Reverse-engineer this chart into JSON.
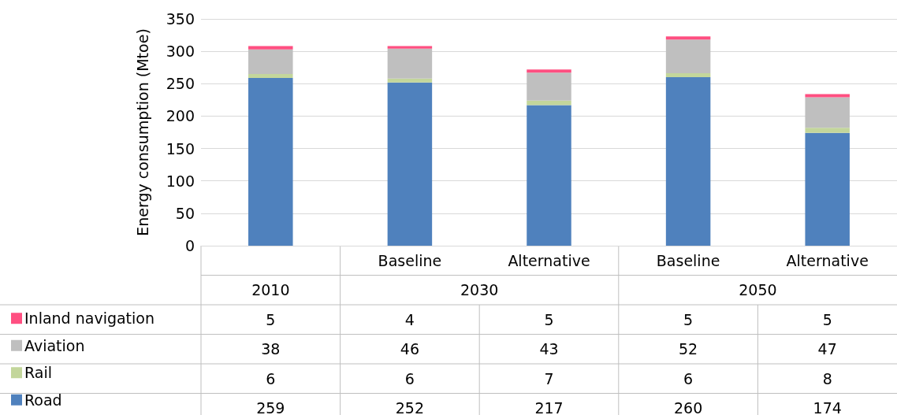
{
  "chart_data": {
    "type": "bar",
    "stacked": true,
    "ylabel": "Energy consumption (Mtoe)",
    "categories": [
      null,
      "Baseline",
      "Alternative",
      "Baseline",
      "Alternative"
    ],
    "annotations": [
      "2010",
      "2030",
      "2050"
    ],
    "series": [
      {
        "name": "Road",
        "color": "#4f81bd",
        "values": [
          259,
          252,
          217,
          260,
          174
        ]
      },
      {
        "name": "Rail",
        "color": "#c3d69b",
        "values": [
          6,
          6,
          7,
          6,
          8
        ]
      },
      {
        "name": "Aviation",
        "color": "#bfbfbf",
        "values": [
          38,
          46,
          43,
          52,
          47
        ]
      },
      {
        "name": "Inland navigation",
        "color": "#ff4f81",
        "values": [
          5,
          4,
          5,
          5,
          5
        ]
      }
    ],
    "ylim": [
      0,
      350
    ],
    "yticks": [
      0,
      50,
      100,
      150,
      200,
      250,
      300,
      350
    ],
    "grid": "y",
    "legend": "bottom left",
    "data_labels": true
  }
}
